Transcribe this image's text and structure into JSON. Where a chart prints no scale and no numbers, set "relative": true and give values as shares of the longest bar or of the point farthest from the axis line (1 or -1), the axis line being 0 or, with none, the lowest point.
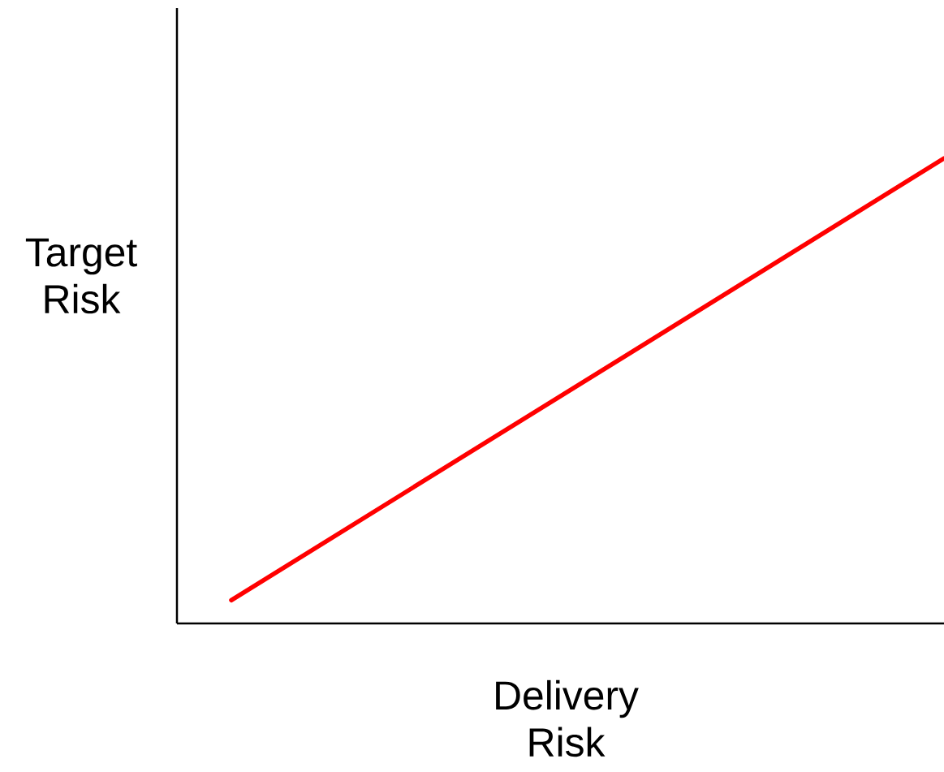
{
  "chart_data": {
    "type": "line",
    "relative": true,
    "xlabel": "Delivery Risk",
    "ylabel": "Target Risk",
    "categories": [
      null,
      null
    ],
    "marker": "none",
    "line_style": "solid",
    "series": [
      {
        "color": "#ff0000",
        "values": [
          0.05,
          1
        ]
      }
    ]
  }
}
